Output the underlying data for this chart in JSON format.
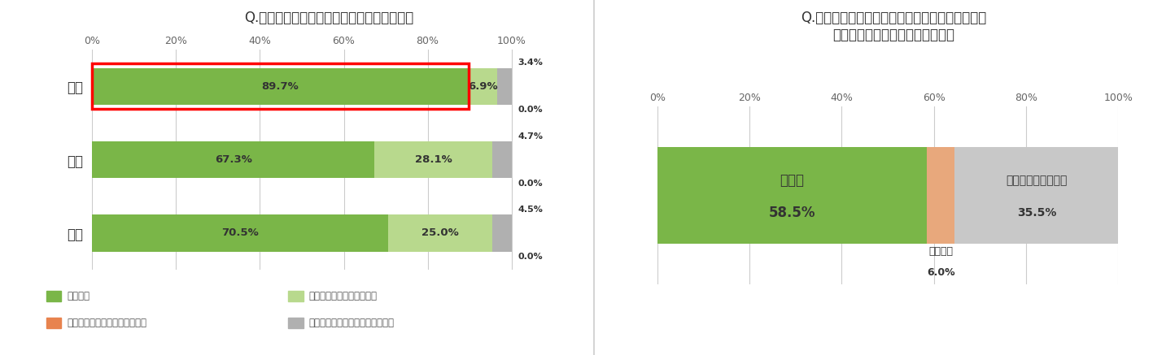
{
  "chart1": {
    "title": "Q.墓じまいをして、良かったと思いますか？",
    "categories": [
      "全体",
      "男性",
      "女性"
    ],
    "series_keys": [
      "良かった",
      "どちらかといえばよかった",
      "墓じまいしないほうが良かった",
      "わからない、どちらとも言えない"
    ],
    "series": {
      "良かった": [
        70.5,
        67.3,
        89.7
      ],
      "どちらかといえばよかった": [
        25.0,
        28.1,
        6.9
      ],
      "墓じまいしないほうが良かった": [
        0.0,
        0.0,
        0.0
      ],
      "わからない、どちらとも言えない": [
        4.5,
        4.7,
        3.4
      ]
    },
    "colors": {
      "良かった": "#7ab648",
      "どちらかといえばよかった": "#b8d98d",
      "墓じまいしないほうが良かった": "#e8834e",
      "わからない、どちらとも言えない": "#b0b0b0"
    },
    "highlight_row": 2,
    "xticks": [
      0,
      20,
      40,
      60,
      80,
      100
    ],
    "legend_row1": [
      [
        "良かった",
        "#7ab648"
      ],
      [
        "どちらかといえばよかった",
        "#b8d98d"
      ]
    ],
    "legend_row2": [
      [
        "墓じまいしないほうが良かった",
        "#e8834e"
      ],
      [
        "わからない、どちらとも言えない",
        "#b0b0b0"
      ]
    ]
  },
  "chart2": {
    "title": "Q.知人や友人に墓じまいについて相談されたら、\n墓じまいすることを奨めますか？",
    "series_keys": [
      "奨める",
      "奨めない",
      "どちらとも言えない"
    ],
    "series": {
      "奨める": 58.5,
      "奨めない": 6.0,
      "どちらとも言えない": 35.5
    },
    "colors": {
      "奨める": "#7ab648",
      "奨めない": "#e8a87c",
      "どちらとも言えない": "#c8c8c8"
    },
    "xticks": [
      0,
      20,
      40,
      60,
      80,
      100
    ]
  },
  "bg_color": "#ffffff",
  "text_color": "#333333"
}
